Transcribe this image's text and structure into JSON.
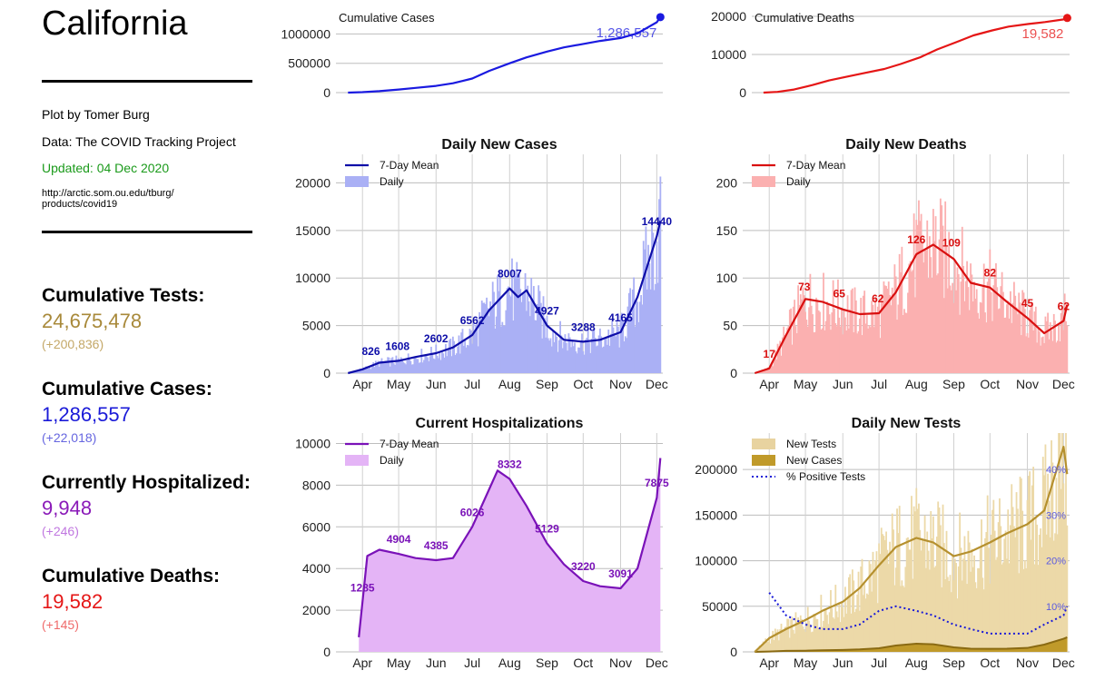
{
  "left_panel": {
    "title": "California",
    "credit": "Plot by Tomer Burg",
    "source": "Data: The COVID Tracking Project",
    "updated": "Updated: 04 Dec 2020",
    "url_line1": "http://arctic.som.ou.edu/tburg/",
    "url_line2": "products/covid19",
    "stats": [
      {
        "label": "Cumulative Tests:",
        "value": "24,675,478",
        "delta": "(+200,836)",
        "color": "#a8893a",
        "delta_color": "#c4a868"
      },
      {
        "label": "Cumulative Cases:",
        "value": "1,286,557",
        "delta": "(+22,018)",
        "color": "#1a1ad8",
        "delta_color": "#6666e0"
      },
      {
        "label": "Currently Hospitalized:",
        "value": "9,948",
        "delta": "(+246)",
        "color": "#8a1ab8",
        "delta_color": "#c077e0"
      },
      {
        "label": "Cumulative Deaths:",
        "value": "19,582",
        "delta": "(+145)",
        "color": "#e51616",
        "delta_color": "#ef6a6a"
      }
    ]
  },
  "colors": {
    "updated": "#1a9a1a"
  },
  "chart_data": [
    {
      "id": "cum_cases",
      "type": "line",
      "title": "Cumulative Cases",
      "color": "#1a1ae0",
      "x": [
        "Mar 20",
        "Apr 1",
        "Apr 15",
        "May 1",
        "May 15",
        "Jun 1",
        "Jun 15",
        "Jul 1",
        "Jul 15",
        "Aug 1",
        "Aug 15",
        "Sep 1",
        "Sep 15",
        "Oct 1",
        "Oct 15",
        "Nov 1",
        "Nov 15",
        "Dec 1",
        "Dec 4"
      ],
      "values": [
        0,
        8000,
        25000,
        52000,
        80000,
        115000,
        160000,
        240000,
        370000,
        500000,
        600000,
        700000,
        770000,
        830000,
        880000,
        930000,
        1010000,
        1200000,
        1286557
      ],
      "ylim": [
        0,
        1300000
      ],
      "yticks": [
        0,
        500000,
        1000000
      ],
      "end_label": "1,286,557"
    },
    {
      "id": "cum_deaths",
      "type": "line",
      "title": "Cumulative Deaths",
      "color": "#e51616",
      "x": [
        "Mar 20",
        "Apr 1",
        "Apr 15",
        "May 1",
        "May 15",
        "Jun 1",
        "Jun 15",
        "Jul 1",
        "Jul 15",
        "Aug 1",
        "Aug 15",
        "Sep 1",
        "Sep 15",
        "Oct 1",
        "Oct 15",
        "Nov 1",
        "Nov 15",
        "Dec 1",
        "Dec 4"
      ],
      "values": [
        0,
        200,
        800,
        2000,
        3200,
        4300,
        5200,
        6200,
        7500,
        9300,
        11300,
        13300,
        15000,
        16300,
        17300,
        18000,
        18500,
        19200,
        19582
      ],
      "ylim": [
        0,
        20000
      ],
      "yticks": [
        0,
        10000,
        20000
      ],
      "end_label": "19,582"
    },
    {
      "id": "daily_cases",
      "type": "bar+line",
      "title": "Daily New Cases",
      "color": "#0d0da8",
      "bar_color": "#aab0f5",
      "legend": [
        "7-Day Mean",
        "Daily"
      ],
      "x": [
        "Mar 20",
        "Apr 1",
        "Apr 15",
        "May 1",
        "May 15",
        "Jun 1",
        "Jun 15",
        "Jul 1",
        "Jul 15",
        "Aug 1",
        "Aug 8",
        "Aug 15",
        "Sep 1",
        "Sep 15",
        "Oct 1",
        "Oct 15",
        "Nov 1",
        "Nov 15",
        "Dec 1",
        "Dec 4"
      ],
      "mean": [
        0,
        400,
        1100,
        1300,
        1700,
        2100,
        2700,
        4000,
        6600,
        8900,
        8000,
        8700,
        5000,
        3500,
        3300,
        3500,
        4300,
        8000,
        14400,
        16000
      ],
      "ylim": [
        0,
        23000
      ],
      "yticks": [
        0,
        5000,
        10000,
        15000,
        20000
      ],
      "annotations": [
        [
          "Apr 8",
          "826"
        ],
        [
          "Apr 30",
          "1608"
        ],
        [
          "Jun 1",
          "2602"
        ],
        [
          "Jul 1",
          "6562"
        ],
        [
          "Aug 1",
          "8007"
        ],
        [
          "Sep 1",
          "4927"
        ],
        [
          "Oct 1",
          "3288"
        ],
        [
          "Nov 1",
          "4165"
        ],
        [
          "Dec 1",
          "14440"
        ]
      ]
    },
    {
      "id": "daily_deaths",
      "type": "bar+line",
      "title": "Daily New Deaths",
      "color": "#d91010",
      "bar_color": "#fbb0b0",
      "legend": [
        "7-Day Mean",
        "Daily"
      ],
      "x": [
        "Mar 20",
        "Apr 1",
        "Apr 15",
        "May 1",
        "May 15",
        "Jun 1",
        "Jun 15",
        "Jul 1",
        "Jul 15",
        "Aug 1",
        "Aug 15",
        "Sep 1",
        "Sep 15",
        "Oct 1",
        "Oct 15",
        "Nov 1",
        "Nov 15",
        "Dec 1",
        "Dec 4"
      ],
      "mean": [
        0,
        5,
        40,
        78,
        75,
        67,
        62,
        63,
        85,
        125,
        135,
        120,
        95,
        90,
        75,
        58,
        42,
        55,
        72
      ],
      "ylim": [
        0,
        230
      ],
      "yticks": [
        0,
        50,
        100,
        150,
        200
      ],
      "annotations": [
        [
          "Apr 1",
          "17"
        ],
        [
          "Apr 30",
          "73"
        ],
        [
          "May 29",
          "65"
        ],
        [
          "Jun 30",
          "62"
        ],
        [
          "Aug 1",
          "126"
        ],
        [
          "Aug 30",
          "109"
        ],
        [
          "Oct 1",
          "82"
        ],
        [
          "Nov 1",
          "45"
        ],
        [
          "Dec 1",
          "62"
        ]
      ]
    },
    {
      "id": "hospitalizations",
      "type": "area+line",
      "title": "Current Hospitalizations",
      "color": "#7a12b8",
      "bar_color": "#e4b4f6",
      "legend": [
        "7-Day Mean",
        "Daily"
      ],
      "x": [
        "Mar 29",
        "Apr 5",
        "Apr 15",
        "May 1",
        "May 15",
        "Jun 1",
        "Jun 15",
        "Jul 1",
        "Jul 15",
        "Jul 22",
        "Aug 1",
        "Aug 15",
        "Sep 1",
        "Sep 15",
        "Oct 1",
        "Oct 15",
        "Nov 1",
        "Nov 15",
        "Dec 1",
        "Dec 4"
      ],
      "mean": [
        700,
        4600,
        4900,
        4700,
        4500,
        4400,
        4500,
        6000,
        7800,
        8700,
        8300,
        7000,
        5200,
        4200,
        3400,
        3150,
        3050,
        4000,
        7400,
        9300
      ],
      "ylim": [
        0,
        10500
      ],
      "yticks": [
        0,
        2000,
        4000,
        6000,
        8000,
        10000
      ],
      "annotations": [
        [
          "Apr 1",
          "1285"
        ],
        [
          "May 1",
          "4904"
        ],
        [
          "Jun 1",
          "4385"
        ],
        [
          "Jul 1",
          "6026"
        ],
        [
          "Aug 1",
          "8332"
        ],
        [
          "Sep 1",
          "5129"
        ],
        [
          "Oct 1",
          "3220"
        ],
        [
          "Nov 1",
          "3091"
        ],
        [
          "Dec 1",
          "7875"
        ]
      ]
    },
    {
      "id": "daily_tests",
      "type": "bar+line",
      "title": "Daily New Tests",
      "color": "#b5902e",
      "bar_color": "#ecd9a8",
      "legend": [
        "New Tests",
        "New Cases",
        "% Positive Tests"
      ],
      "series_colors": {
        "tests_fill": "#e8d3a0",
        "cases_fill": "#c09a2a",
        "positive": "#1a1ad8"
      },
      "x": [
        "Mar 20",
        "Apr 1",
        "Apr 15",
        "May 1",
        "May 15",
        "Jun 1",
        "Jun 15",
        "Jul 1",
        "Jul 15",
        "Aug 1",
        "Aug 15",
        "Sep 1",
        "Sep 15",
        "Oct 1",
        "Oct 15",
        "Nov 1",
        "Nov 15",
        "Dec 1",
        "Dec 4"
      ],
      "tests_mean": [
        0,
        15000,
        25000,
        35000,
        45000,
        55000,
        70000,
        95000,
        115000,
        125000,
        120000,
        105000,
        110000,
        120000,
        130000,
        140000,
        155000,
        225000,
        195000
      ],
      "cases_mean": [
        0,
        400,
        1100,
        1300,
        1700,
        2100,
        2700,
        4000,
        7000,
        8900,
        8300,
        5000,
        3500,
        3300,
        3500,
        4300,
        8000,
        14400,
        16000
      ],
      "positive_pct": [
        null,
        13,
        8,
        6,
        5,
        5,
        6,
        9,
        10,
        9,
        8,
        6,
        5,
        4,
        4,
        4,
        6,
        8,
        10
      ],
      "ylim": [
        0,
        240000
      ],
      "yticks": [
        0,
        50000,
        100000,
        150000,
        200000
      ],
      "pct_ticks": [
        "10%",
        "20%",
        "30%",
        "40%"
      ]
    }
  ],
  "x_axis_labels": [
    "Apr",
    "May",
    "Jun",
    "Jul",
    "Aug",
    "Sep",
    "Oct",
    "Nov",
    "Dec"
  ]
}
